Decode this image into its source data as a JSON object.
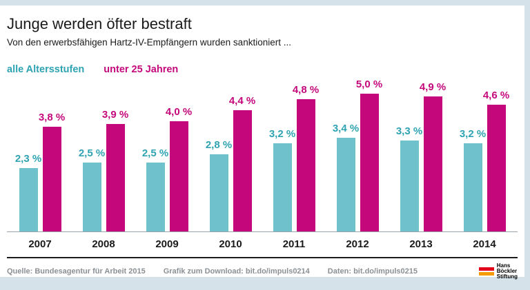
{
  "header": {
    "title": "Junge werden öfter bestraft",
    "subtitle": "Von den erwerbsfähigen Hartz-IV-Empfängern wurden sanktioniert ..."
  },
  "legend": {
    "items": [
      {
        "label": "alle Altersstufen",
        "color": "#2fa3b2"
      },
      {
        "label": "unter 25 Jahren",
        "color": "#c4087c"
      }
    ]
  },
  "chart_data": {
    "type": "bar",
    "title": "Junge werden öfter bestraft",
    "subtitle": "Von den erwerbsfähigen Hartz-IV-Empfängern wurden sanktioniert ...",
    "categories": [
      "2007",
      "2008",
      "2009",
      "2010",
      "2011",
      "2012",
      "2013",
      "2014"
    ],
    "series": [
      {
        "name": "alle Altersstufen",
        "color": "#6fc1cb",
        "label_color": "#2fa3b2",
        "values": [
          2.3,
          2.5,
          2.5,
          2.8,
          3.2,
          3.4,
          3.3,
          3.2
        ],
        "labels": [
          "2,3 %",
          "2,5 %",
          "2,5 %",
          "2,8 %",
          "3,2 %",
          "3,4 %",
          "3,3 %",
          "3,2 %"
        ]
      },
      {
        "name": "unter 25 Jahren",
        "color": "#c4087c",
        "label_color": "#c4087c",
        "values": [
          3.8,
          3.9,
          4.0,
          4.4,
          4.8,
          5.0,
          4.9,
          4.6
        ],
        "labels": [
          "3,8 %",
          "3,9 %",
          "4,0 %",
          "4,4 %",
          "4,8 %",
          "5,0 %",
          "4,9 %",
          "4,6 %"
        ]
      }
    ],
    "ylim": [
      0,
      5.65
    ],
    "grid": false,
    "legend_position": "top-left",
    "xlabel": "",
    "ylabel": ""
  },
  "footer": {
    "source": "Quelle: Bundesagentur für Arbeit 2015",
    "download": "Grafik zum Download: bit.do/impuls0214",
    "daten": "Daten: bit.do/impuls0215",
    "logo": {
      "lines": [
        "Hans",
        "Böckler",
        "Stiftung"
      ],
      "bar_colors": [
        "#e2001a",
        "#f59b00"
      ]
    }
  },
  "colors": {
    "background": "#d6e2ea",
    "panel": "#ffffff",
    "divider": "#1a1a1a",
    "baseline": "#9aa1a7"
  }
}
